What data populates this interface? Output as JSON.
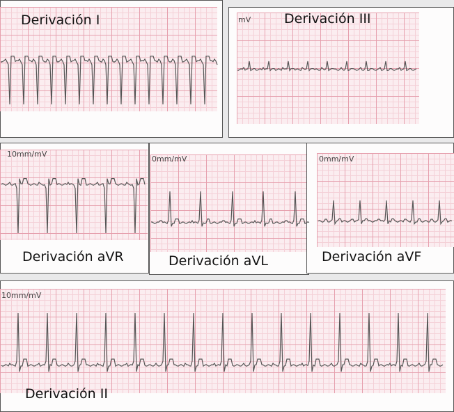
{
  "panels": [
    {
      "label": "Derivación I"
    },
    {
      "label": "Derivación III",
      "calibration": "mV"
    },
    {
      "label": "Derivación aVR",
      "calibration": "10mm/mV"
    },
    {
      "label": "Derivación aVL",
      "calibration": "0mm/mV"
    },
    {
      "label": "Derivación aVF",
      "calibration": "0mm/mV"
    },
    {
      "label": "Derivación II",
      "calibration": "10mm/mV"
    }
  ]
}
